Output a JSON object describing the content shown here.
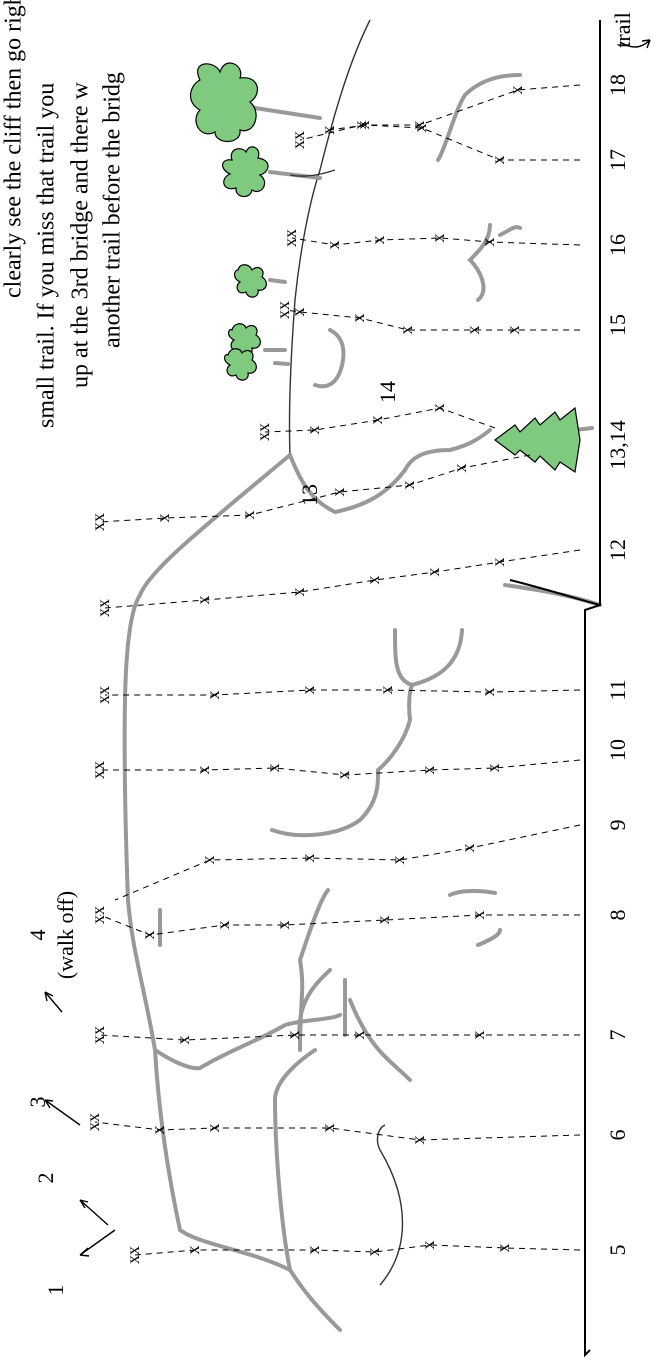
{
  "caption": [
    "clearly see the cliff then go right",
    "small trail. If you miss that trail you",
    "up at the 3rd bridge and there w",
    "another trail before the bridg"
  ],
  "exits": [
    "1",
    "2",
    "3",
    "4"
  ],
  "walk_off": "(walk off)",
  "trail": "trail",
  "routes": [
    "5",
    "6",
    "7",
    "8",
    "9",
    "10",
    "11",
    "12",
    "13,14",
    "15",
    "16",
    "17",
    "18"
  ],
  "route_labels": [
    "13",
    "14"
  ],
  "symbols": {
    "anchor": "xx",
    "bolt": "x"
  }
}
